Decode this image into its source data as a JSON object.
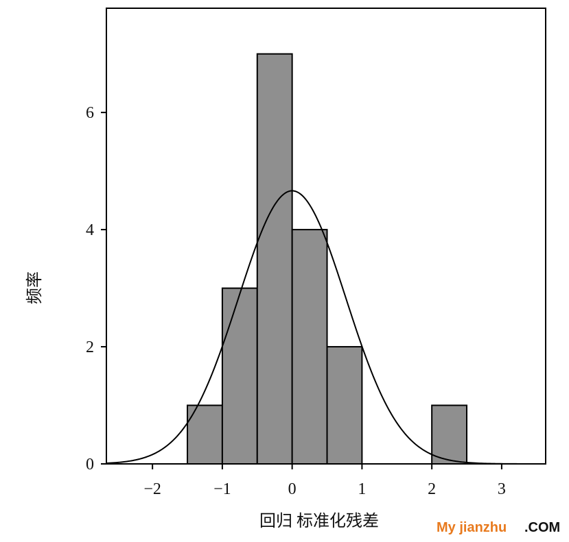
{
  "chart_data": {
    "type": "histogram",
    "xlabel": "回归 标准化残差",
    "ylabel": "频率",
    "bins": [
      -1.5,
      -1,
      -0.5,
      0,
      0.5,
      1,
      1.5,
      2,
      2.5
    ],
    "counts": [
      1,
      3,
      7,
      4,
      2,
      0,
      0,
      1
    ],
    "color": "#8f8f8f",
    "normal_curve": {
      "mean": 0,
      "std": 0.77
    },
    "xlim": [
      -2.66,
      3.63
    ],
    "ylim": [
      0,
      7.78
    ],
    "xticks": [
      {
        "value": -2,
        "label": "−2"
      },
      {
        "value": -1,
        "label": "−1"
      },
      0,
      1,
      2,
      3
    ],
    "yticks": [
      0,
      2,
      4,
      6
    ]
  },
  "watermark": {
    "brand": "My jianzhu",
    "suffix": ".COM"
  }
}
